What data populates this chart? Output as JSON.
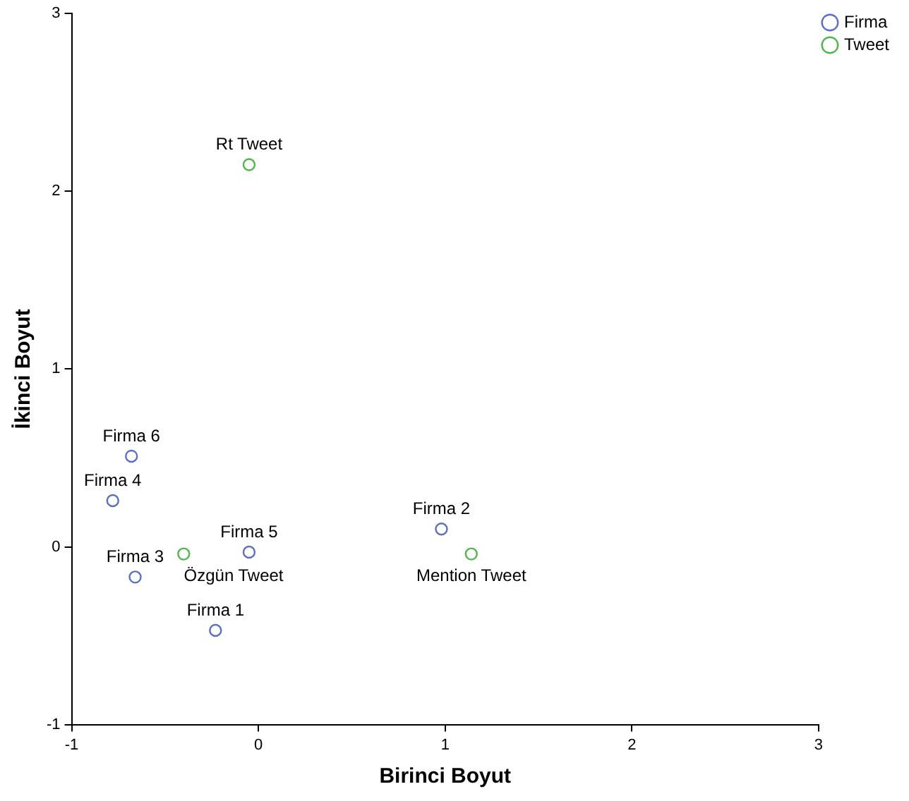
{
  "chart_data": {
    "type": "scatter",
    "xlabel": "Birinci Boyut",
    "ylabel": "İkinci Boyut",
    "xlim": [
      -1,
      3
    ],
    "xticks": [
      -1,
      0,
      1,
      2,
      3
    ],
    "ylim": [
      -1,
      3
    ],
    "yticks": [
      -1,
      0,
      1,
      2,
      3
    ],
    "grid": false,
    "legend": "top right",
    "marker": "circle",
    "series": [
      {
        "name": "Firma",
        "color": "#5b6ec8",
        "x": [
          -0.23,
          0.98,
          -0.66,
          -0.78,
          -0.05,
          -0.68
        ],
        "values": [
          -0.47,
          0.1,
          -0.17,
          0.26,
          -0.03,
          0.51
        ]
      },
      {
        "name": "Tweet",
        "color": "#4db84d",
        "x": [
          -0.05,
          -0.4,
          1.14
        ],
        "values": [
          2.15,
          -0.04,
          -0.04
        ]
      }
    ],
    "annotations": [
      {
        "text": "Firma 1",
        "x": -0.23,
        "y": -0.47
      },
      {
        "text": "Firma 2",
        "x": 0.98,
        "y": 0.1
      },
      {
        "text": "Firma 3",
        "x": -0.66,
        "y": -0.17
      },
      {
        "text": "Firma 4",
        "x": -0.78,
        "y": 0.26
      },
      {
        "text": "Firma 5",
        "x": -0.05,
        "y": -0.03
      },
      {
        "text": "Firma 6",
        "x": -0.68,
        "y": 0.51
      },
      {
        "text": "Rt Tweet",
        "x": -0.05,
        "y": 2.15
      },
      {
        "text": "Özgün Tweet",
        "x": -0.4,
        "y": -0.04
      },
      {
        "text": "Mention Tweet",
        "x": 1.14,
        "y": -0.04
      }
    ]
  }
}
